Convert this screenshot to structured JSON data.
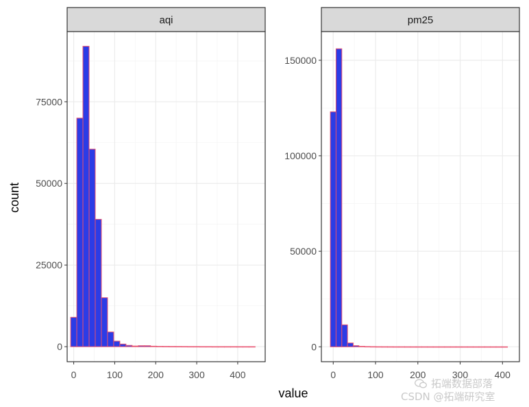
{
  "chart_data": [
    {
      "type": "bar",
      "title": "aqi",
      "xlabel": "value",
      "ylabel": "count",
      "x_ticks": [
        0,
        100,
        200,
        300,
        400
      ],
      "y_ticks": [
        0,
        25000,
        50000,
        75000
      ],
      "xlim": [
        -16,
        467
      ],
      "ylim": [
        -4600,
        96500
      ],
      "bin_width": 15,
      "bins": [
        {
          "x": 0,
          "count": 9000
        },
        {
          "x": 15,
          "count": 70000
        },
        {
          "x": 30,
          "count": 92000
        },
        {
          "x": 45,
          "count": 60500
        },
        {
          "x": 60,
          "count": 39000
        },
        {
          "x": 75,
          "count": 15000
        },
        {
          "x": 90,
          "count": 4500
        },
        {
          "x": 105,
          "count": 1700
        },
        {
          "x": 120,
          "count": 800
        },
        {
          "x": 135,
          "count": 400
        },
        {
          "x": 150,
          "count": 200
        },
        {
          "x": 165,
          "count": 300
        },
        {
          "x": 180,
          "count": 300
        },
        {
          "x": 195,
          "count": 150
        },
        {
          "x": 210,
          "count": 100
        },
        {
          "x": 225,
          "count": 80
        },
        {
          "x": 240,
          "count": 60
        },
        {
          "x": 255,
          "count": 50
        },
        {
          "x": 270,
          "count": 40
        },
        {
          "x": 285,
          "count": 30
        },
        {
          "x": 300,
          "count": 30
        },
        {
          "x": 315,
          "count": 20
        },
        {
          "x": 330,
          "count": 20
        },
        {
          "x": 345,
          "count": 10
        },
        {
          "x": 360,
          "count": 10
        },
        {
          "x": 375,
          "count": 10
        },
        {
          "x": 390,
          "count": 10
        },
        {
          "x": 405,
          "count": 5
        },
        {
          "x": 420,
          "count": 5
        },
        {
          "x": 435,
          "count": 5
        }
      ]
    },
    {
      "type": "bar",
      "title": "pm25",
      "xlabel": "value",
      "ylabel": "count",
      "x_ticks": [
        0,
        100,
        200,
        300,
        400
      ],
      "y_ticks": [
        0,
        50000,
        100000,
        150000
      ],
      "xlim": [
        -28,
        440
      ],
      "ylim": [
        -7800,
        165000
      ],
      "bin_width": 13.5,
      "bins": [
        {
          "x": 0,
          "count": 123000
        },
        {
          "x": 13.5,
          "count": 156000
        },
        {
          "x": 27,
          "count": 11500
        },
        {
          "x": 40.5,
          "count": 2000
        },
        {
          "x": 54,
          "count": 600
        },
        {
          "x": 67.5,
          "count": 250
        },
        {
          "x": 81,
          "count": 120
        },
        {
          "x": 94.5,
          "count": 80
        },
        {
          "x": 108,
          "count": 50
        },
        {
          "x": 121.5,
          "count": 40
        },
        {
          "x": 135,
          "count": 30
        },
        {
          "x": 148.5,
          "count": 20
        },
        {
          "x": 162,
          "count": 20
        },
        {
          "x": 175.5,
          "count": 15
        },
        {
          "x": 189,
          "count": 10
        },
        {
          "x": 202.5,
          "count": 10
        },
        {
          "x": 216,
          "count": 10
        },
        {
          "x": 229.5,
          "count": 8
        },
        {
          "x": 243,
          "count": 6
        },
        {
          "x": 256.5,
          "count": 5
        },
        {
          "x": 270,
          "count": 5
        },
        {
          "x": 283.5,
          "count": 4
        },
        {
          "x": 297,
          "count": 4
        },
        {
          "x": 310.5,
          "count": 3
        },
        {
          "x": 324,
          "count": 3
        },
        {
          "x": 337.5,
          "count": 2
        },
        {
          "x": 351,
          "count": 2
        },
        {
          "x": 364.5,
          "count": 2
        },
        {
          "x": 378,
          "count": 1
        },
        {
          "x": 391.5,
          "count": 1
        },
        {
          "x": 405,
          "count": 1
        }
      ]
    }
  ],
  "axis_titles": {
    "x": "value",
    "y": "count"
  },
  "watermark": {
    "line1": "拓端数据部落",
    "line2": "CSDN @拓端研究室",
    "icon": "wechat-icon"
  },
  "colors": {
    "bar_fill": "#2b3ce6",
    "bar_outline": "#e8506e",
    "strip_fill": "#d9d9d9",
    "grid_major": "#ebebeb",
    "grid_minor": "#f5f5f5",
    "panel_border": "#333333",
    "tick_text": "#4d4d4d"
  }
}
